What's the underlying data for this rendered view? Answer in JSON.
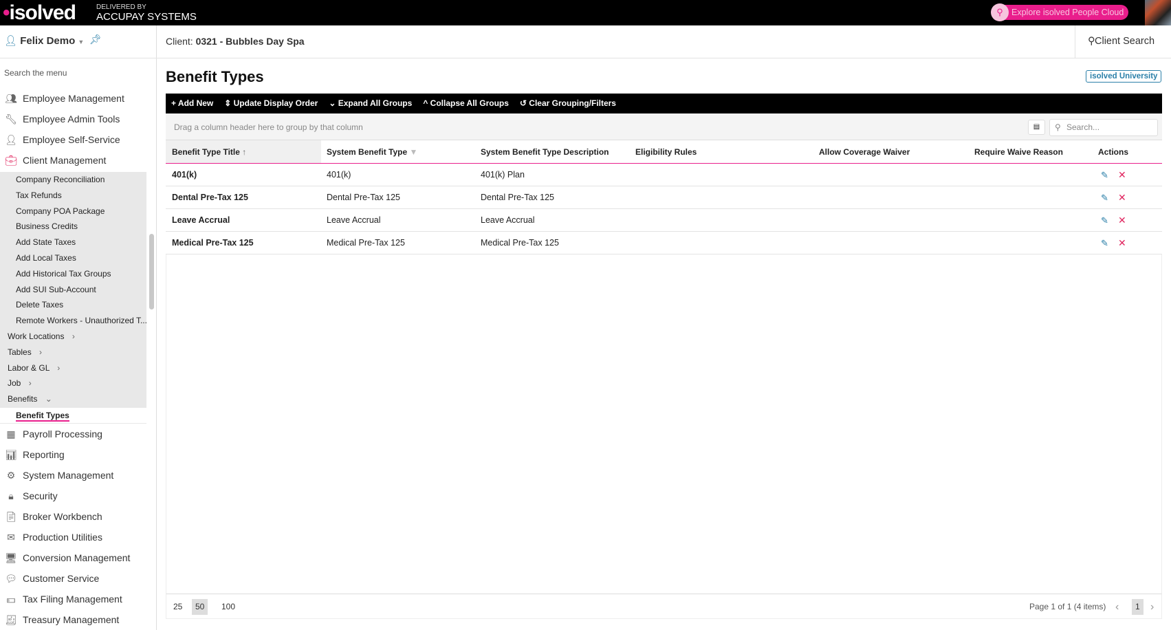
{
  "topbar": {
    "logo": "isolved",
    "delivered_by": "DELIVERED BY",
    "partner": "ACCUPAY SYSTEMS",
    "explore_label": "Explore isolved People Cloud",
    "brand_color": "#e91e8c"
  },
  "user": {
    "name": "Felix Demo"
  },
  "sidebar": {
    "search_placeholder": "Search the menu",
    "top_items": [
      {
        "label": "Employee Management",
        "icon": "people-icon"
      },
      {
        "label": "Employee Admin Tools",
        "icon": "wrench-icon"
      },
      {
        "label": "Employee Self-Service",
        "icon": "person-icon"
      },
      {
        "label": "Client Management",
        "icon": "briefcase-icon"
      }
    ],
    "sub_items": [
      {
        "label": "Company Reconciliation"
      },
      {
        "label": "Tax Refunds"
      },
      {
        "label": "Company POA Package"
      },
      {
        "label": "Business Credits"
      },
      {
        "label": "Add State Taxes"
      },
      {
        "label": "Add Local Taxes"
      },
      {
        "label": "Add Historical Tax Groups"
      },
      {
        "label": "Add SUI Sub-Account"
      },
      {
        "label": "Delete Taxes"
      },
      {
        "label": "Remote Workers - Unauthorized T..."
      }
    ],
    "groups": [
      {
        "label": "Work Locations"
      },
      {
        "label": "Tables"
      },
      {
        "label": "Labor & GL"
      },
      {
        "label": "Job"
      },
      {
        "label": "Benefits"
      }
    ],
    "active": "Benefit Types",
    "bottom_items": [
      {
        "label": "Payroll Processing",
        "icon": "calculator-icon"
      },
      {
        "label": "Reporting",
        "icon": "chart-icon"
      },
      {
        "label": "System Management",
        "icon": "gear-icon"
      },
      {
        "label": "Security",
        "icon": "lock-icon"
      },
      {
        "label": "Broker Workbench",
        "icon": "document-icon"
      },
      {
        "label": "Production Utilities",
        "icon": "mail-icon"
      },
      {
        "label": "Conversion Management",
        "icon": "monitor-icon"
      },
      {
        "label": "Customer Service",
        "icon": "chat-icon"
      },
      {
        "label": "Tax Filing Management",
        "icon": "money-icon"
      },
      {
        "label": "Treasury Management",
        "icon": "check-icon"
      }
    ]
  },
  "header": {
    "client_label": "Client:",
    "client_value": "0321 - Bubbles Day Spa",
    "client_search": "Client Search"
  },
  "page": {
    "title": "Benefit Types",
    "university": "isolved University"
  },
  "toolbar": {
    "add_new": "Add New",
    "update_order": "Update Display Order",
    "expand": "Expand All Groups",
    "collapse": "Collapse All Groups",
    "clear": "Clear Grouping/Filters"
  },
  "grid": {
    "group_hint": "Drag a column header here to group by that column",
    "search_placeholder": "Search...",
    "columns": [
      "Benefit Type Title",
      "System Benefit Type",
      "System Benefit Type Description",
      "Eligibility Rules",
      "Allow Coverage Waiver",
      "Require Waive Reason",
      "Actions"
    ],
    "sort": "ascending",
    "rows": [
      {
        "title": "401(k)",
        "system_type": "401(k)",
        "description": "401(k) Plan",
        "eligibility": "",
        "waiver": "",
        "waive_reason": ""
      },
      {
        "title": "Dental Pre-Tax 125",
        "system_type": "Dental Pre-Tax 125",
        "description": "Dental Pre-Tax 125",
        "eligibility": "",
        "waiver": "",
        "waive_reason": ""
      },
      {
        "title": "Leave Accrual",
        "system_type": "Leave Accrual",
        "description": "Leave Accrual",
        "eligibility": "",
        "waiver": "",
        "waive_reason": ""
      },
      {
        "title": "Medical Pre-Tax 125",
        "system_type": "Medical Pre-Tax 125",
        "description": "Medical Pre-Tax 125",
        "eligibility": "",
        "waiver": "",
        "waive_reason": ""
      }
    ]
  },
  "pager": {
    "sizes": [
      "25",
      "50",
      "100"
    ],
    "selected_size": "50",
    "info": "Page 1 of 1 (4 items)",
    "current_page": "1"
  }
}
